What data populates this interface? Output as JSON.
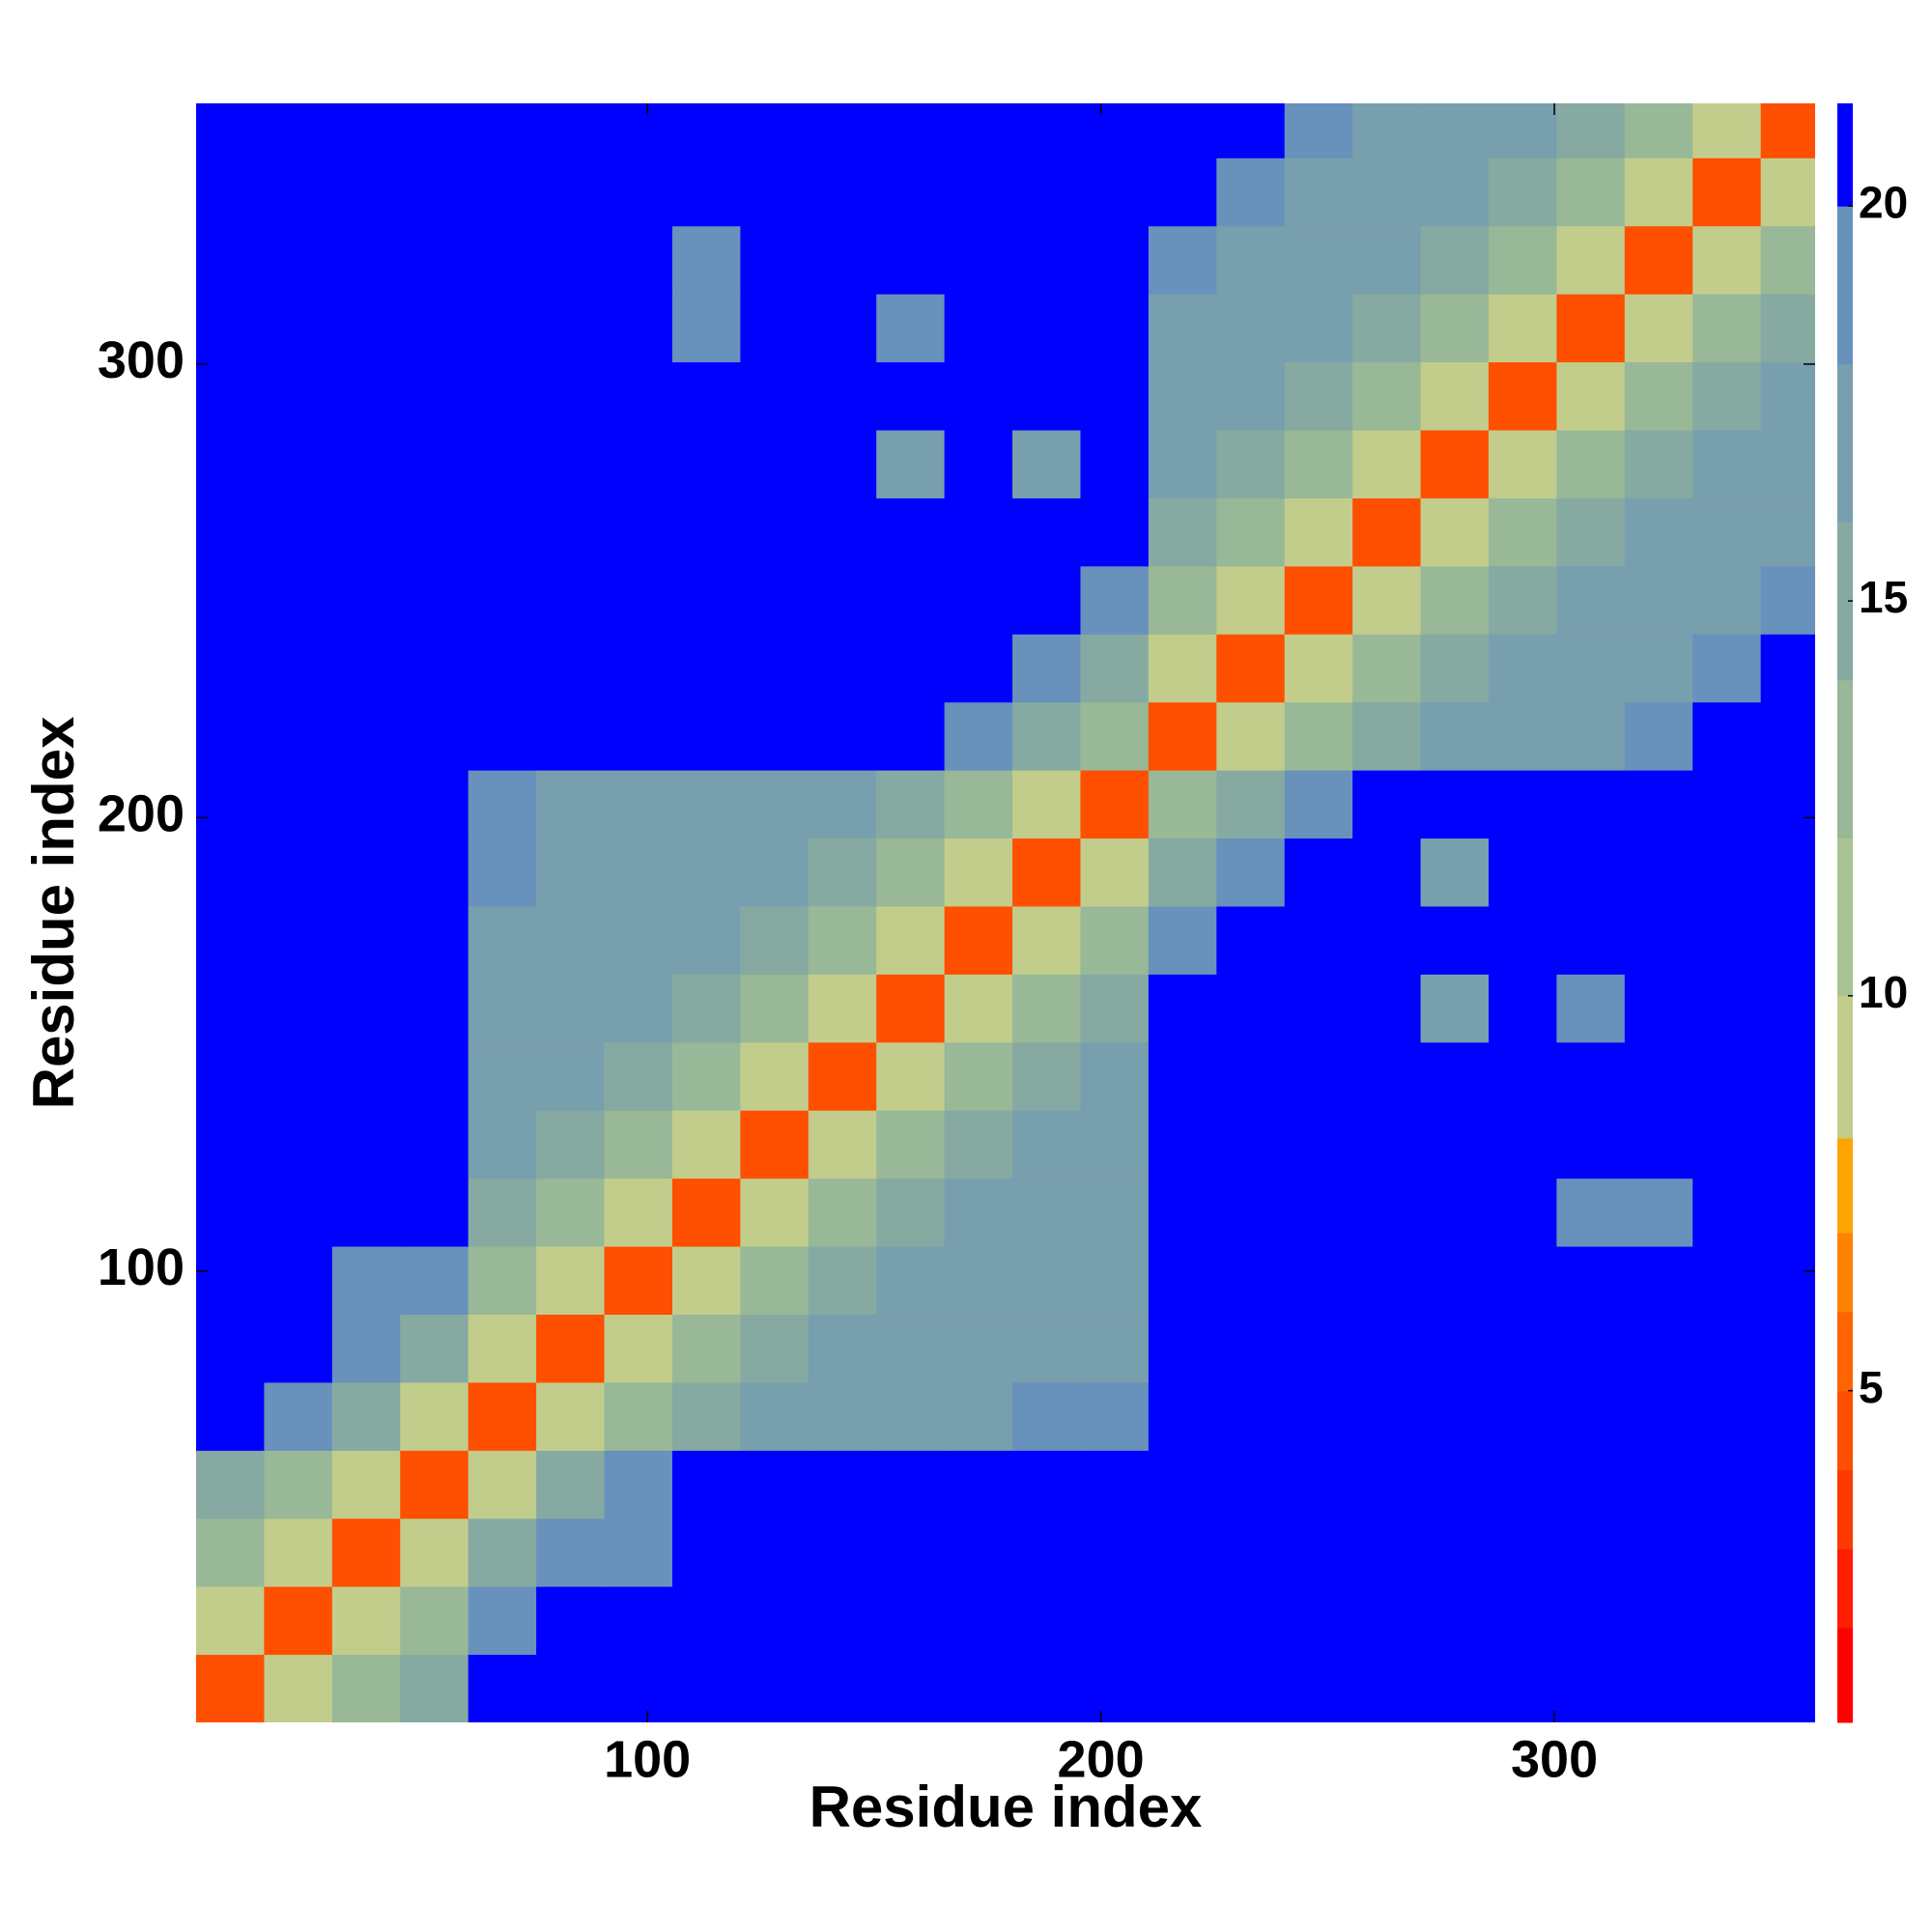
{
  "chart_data": {
    "type": "heatmap",
    "x_label": "Residue index",
    "y_label": "Residue index",
    "xlim": [
      0.5,
      357.5
    ],
    "ylim": [
      0.5,
      357.5
    ],
    "xticks": [
      100,
      200,
      300
    ],
    "yticks": [
      100,
      200,
      300
    ],
    "x_edges": [
      0.5,
      15.5,
      30.5,
      45.5,
      60.5,
      75.5,
      90.5,
      105.5,
      120.5,
      135.5,
      150.5,
      165.5,
      180.5,
      195.5,
      210.5,
      225.5,
      240.5,
      255.5,
      270.5,
      285.5,
      300.5,
      315.5,
      330.5,
      345.5,
      357.5
    ],
    "y_edges": [
      0.5,
      15.5,
      30.5,
      45.5,
      60.5,
      75.5,
      90.5,
      105.5,
      120.5,
      135.5,
      150.5,
      165.5,
      180.5,
      195.5,
      210.5,
      225.5,
      240.5,
      255.5,
      270.5,
      285.5,
      300.5,
      315.5,
      330.5,
      345.5,
      357.5
    ],
    "colorbar": {
      "levels": [
        0.8,
        2,
        3,
        4,
        5,
        6,
        7,
        8.2,
        10,
        12,
        14,
        16,
        18,
        20,
        21.3
      ],
      "colors": [
        "#ff0000",
        "#ff1e00",
        "#ff3a00",
        "#ff4f00",
        "#ff6400",
        "#ff8200",
        "#ffa500",
        "#c2cd8c",
        "#aac392",
        "#98b897",
        "#86aaa2",
        "#789fad",
        "#6892bb",
        "#0000ff"
      ],
      "ticks": [
        5,
        10,
        15,
        20
      ]
    },
    "z": [
      [
        4,
        9,
        13,
        15,
        21,
        21,
        21,
        21,
        21,
        21,
        21,
        21,
        21,
        21,
        21,
        21,
        21,
        21,
        21,
        21,
        21,
        21,
        21,
        21
      ],
      [
        9,
        4,
        9,
        13,
        19,
        21,
        21,
        21,
        21,
        21,
        21,
        21,
        21,
        21,
        21,
        21,
        21,
        21,
        21,
        21,
        21,
        21,
        21,
        21
      ],
      [
        13,
        9,
        4,
        9,
        15,
        19,
        19,
        21,
        21,
        21,
        21,
        21,
        21,
        21,
        21,
        21,
        21,
        21,
        21,
        21,
        21,
        21,
        21,
        21
      ],
      [
        15,
        13,
        9,
        4,
        9,
        15,
        19,
        21,
        21,
        21,
        21,
        21,
        21,
        21,
        21,
        21,
        21,
        21,
        21,
        21,
        21,
        21,
        21,
        21
      ],
      [
        21,
        19,
        15,
        9,
        4,
        9,
        13,
        15,
        16,
        16,
        16,
        16,
        18,
        19,
        21,
        21,
        21,
        21,
        21,
        21,
        21,
        21,
        21,
        21
      ],
      [
        21,
        21,
        19,
        15,
        9,
        4,
        9,
        13,
        15,
        16,
        16,
        16,
        16,
        17,
        21,
        21,
        21,
        21,
        21,
        21,
        21,
        21,
        21,
        21
      ],
      [
        21,
        21,
        19,
        19,
        13,
        9,
        4,
        9,
        13,
        15,
        16,
        16,
        16,
        16,
        21,
        21,
        21,
        21,
        21,
        21,
        21,
        21,
        21,
        21
      ],
      [
        21,
        21,
        21,
        21,
        15,
        13,
        9,
        4,
        9,
        13,
        15,
        16,
        16,
        16,
        21,
        21,
        21,
        21,
        21,
        21,
        18,
        18,
        21,
        21
      ],
      [
        21,
        21,
        21,
        21,
        16,
        15,
        13,
        9,
        4,
        9,
        13,
        15,
        16,
        16,
        21,
        21,
        21,
        21,
        21,
        21,
        21,
        21,
        21,
        21
      ],
      [
        21,
        21,
        21,
        21,
        16,
        16,
        15,
        13,
        9,
        4,
        9,
        13,
        15,
        16,
        21,
        21,
        21,
        21,
        21,
        21,
        21,
        21,
        21,
        21
      ],
      [
        21,
        21,
        21,
        21,
        16,
        16,
        16,
        15,
        13,
        9,
        4,
        9,
        13,
        15,
        21,
        21,
        21,
        21,
        17,
        21,
        18,
        21,
        21,
        21
      ],
      [
        21,
        21,
        21,
        21,
        16,
        16,
        16,
        16,
        15,
        13,
        9,
        4,
        9,
        13,
        19,
        21,
        21,
        21,
        21,
        21,
        21,
        21,
        21,
        21
      ],
      [
        21,
        21,
        21,
        21,
        18,
        16,
        16,
        16,
        16,
        15,
        13,
        9,
        4,
        9,
        15,
        19,
        21,
        21,
        17,
        21,
        21,
        21,
        21,
        21
      ],
      [
        21,
        21,
        21,
        21,
        19,
        17,
        16,
        16,
        16,
        16,
        15,
        13,
        9,
        4,
        12,
        15,
        19,
        21,
        21,
        21,
        21,
        21,
        21,
        21
      ],
      [
        21,
        21,
        21,
        21,
        21,
        21,
        21,
        21,
        21,
        21,
        21,
        19,
        15,
        12,
        4,
        9,
        13,
        15,
        17,
        17,
        17,
        18,
        20,
        20
      ],
      [
        21,
        21,
        21,
        21,
        21,
        21,
        21,
        21,
        21,
        21,
        21,
        21,
        19,
        15,
        9,
        4,
        9,
        13,
        15,
        17,
        17,
        17,
        18,
        20
      ],
      [
        21,
        21,
        21,
        21,
        21,
        21,
        21,
        21,
        21,
        21,
        21,
        21,
        21,
        19,
        13,
        9,
        4,
        9,
        13,
        15,
        17,
        17,
        17,
        18
      ],
      [
        21,
        21,
        21,
        21,
        21,
        21,
        21,
        21,
        21,
        21,
        21,
        21,
        21,
        21,
        15,
        13,
        9,
        4,
        9,
        13,
        15,
        17,
        17,
        17
      ],
      [
        21,
        21,
        21,
        21,
        21,
        21,
        21,
        21,
        21,
        21,
        17,
        21,
        17,
        21,
        17,
        15,
        13,
        9,
        4,
        9,
        13,
        15,
        17,
        17
      ],
      [
        21,
        21,
        21,
        21,
        21,
        21,
        21,
        21,
        21,
        21,
        21,
        21,
        21,
        21,
        17,
        17,
        15,
        13,
        9,
        4,
        9,
        13,
        15,
        17
      ],
      [
        21,
        21,
        21,
        21,
        21,
        21,
        21,
        18,
        21,
        21,
        18,
        21,
        21,
        21,
        17,
        17,
        17,
        15,
        13,
        9,
        4,
        9,
        13,
        15
      ],
      [
        21,
        21,
        21,
        21,
        21,
        21,
        21,
        18,
        21,
        21,
        21,
        21,
        21,
        21,
        18,
        17,
        17,
        17,
        15,
        13,
        9,
        4,
        9,
        13
      ],
      [
        21,
        21,
        21,
        21,
        21,
        21,
        21,
        21,
        21,
        21,
        21,
        21,
        21,
        21,
        20,
        18,
        17,
        17,
        17,
        15,
        13,
        9,
        4,
        9
      ],
      [
        21,
        21,
        21,
        21,
        21,
        21,
        21,
        21,
        21,
        21,
        21,
        21,
        21,
        21,
        20,
        20,
        18,
        17,
        17,
        17,
        15,
        13,
        9,
        4
      ]
    ]
  }
}
